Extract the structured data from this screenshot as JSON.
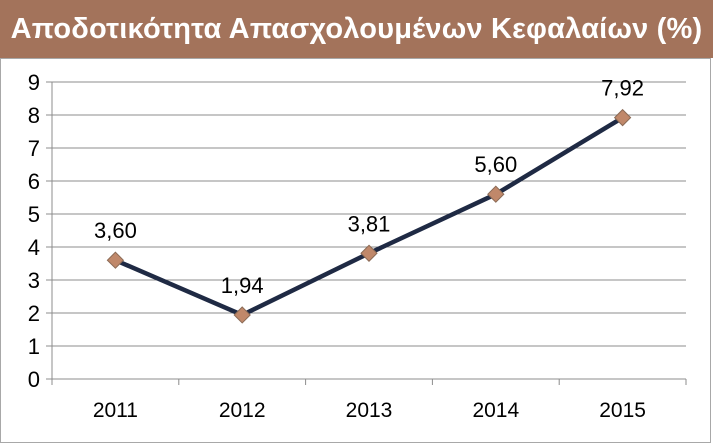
{
  "title": "Αποδοτικότητα Απασχολουμένων Κεφαλαίων (%)",
  "colors": {
    "title_background": "#a3735b",
    "title_text": "#ffffff",
    "line": "#1f2a44",
    "marker": "#c0886a",
    "grid": "#8c8c8c"
  },
  "chart_data": {
    "type": "line",
    "title": "Αποδοτικότητα Απασχολουμένων Κεφαλαίων (%)",
    "categories": [
      "2011",
      "2012",
      "2013",
      "2014",
      "2015"
    ],
    "series": [
      {
        "values": [
          3.6,
          1.94,
          3.81,
          5.6,
          7.92
        ],
        "labels": [
          "3,60",
          "1,94",
          "3,81",
          "5,60",
          "7,92"
        ]
      }
    ],
    "ylim": [
      0,
      9
    ],
    "yticks": [
      "0",
      "1",
      "2",
      "3",
      "4",
      "5",
      "6",
      "7",
      "8",
      "9"
    ],
    "grid": true,
    "marker": "diamond",
    "legend": "none"
  }
}
